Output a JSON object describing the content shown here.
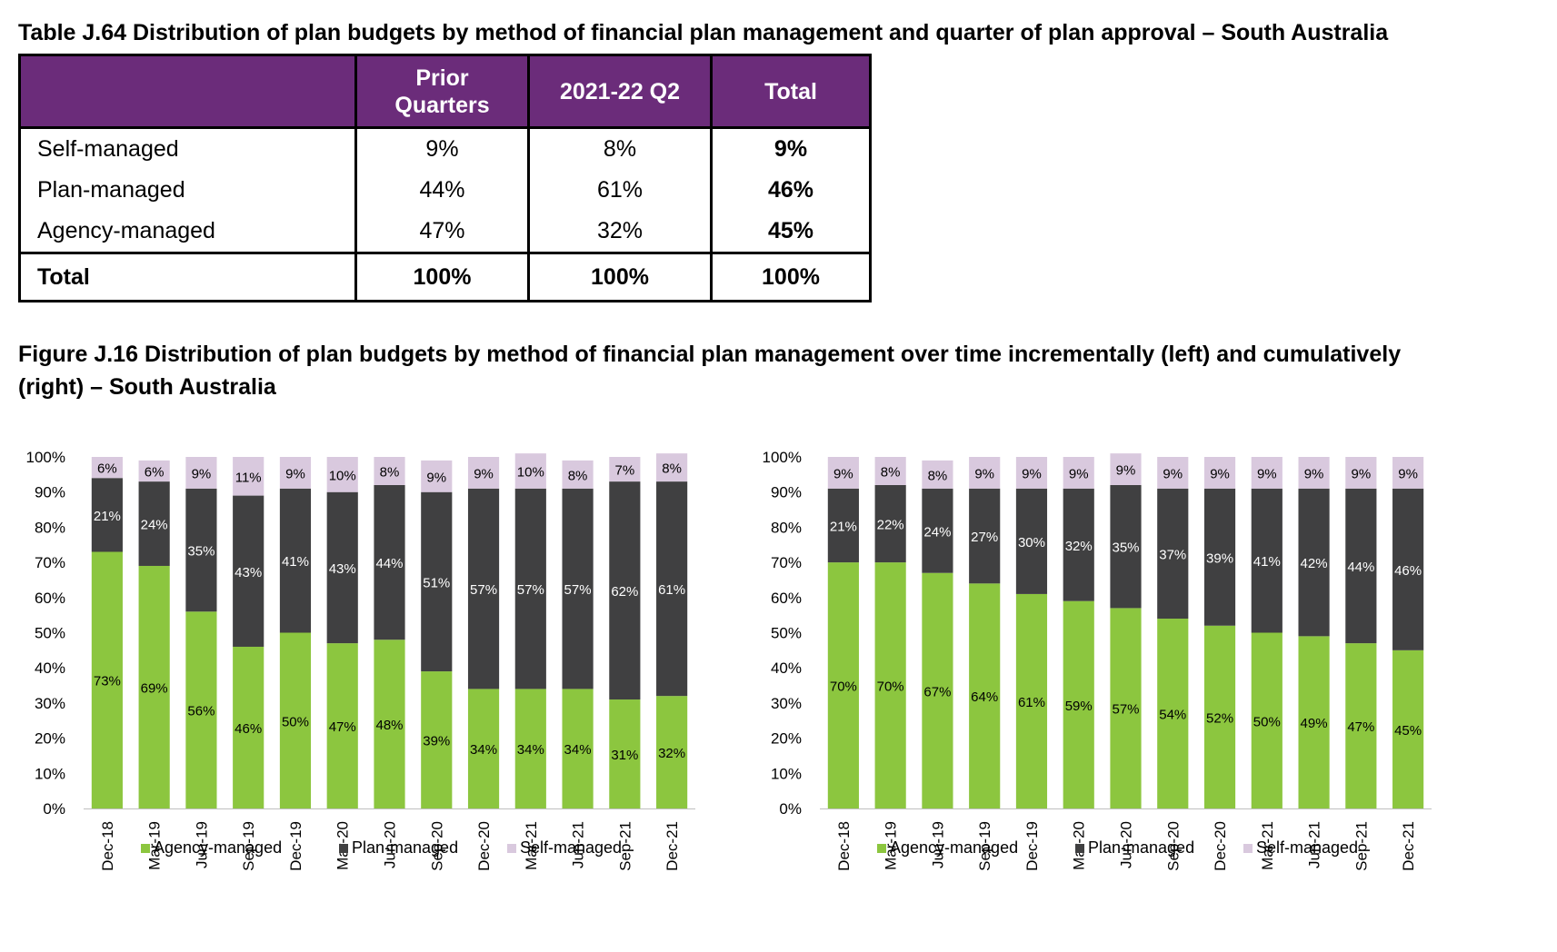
{
  "table": {
    "title": "Table J.64 Distribution of plan budgets by method of financial plan management and quarter of plan approval – South Australia",
    "headers": [
      "",
      "Prior Quarters",
      "2021-22 Q2",
      "Total"
    ],
    "rows": [
      {
        "label": "Self-managed",
        "prior": "9%",
        "q2": "8%",
        "total": "9%"
      },
      {
        "label": "Plan-managed",
        "prior": "44%",
        "q2": "61%",
        "total": "46%"
      },
      {
        "label": "Agency-managed",
        "prior": "47%",
        "q2": "32%",
        "total": "45%"
      }
    ],
    "total_row": {
      "label": "Total",
      "prior": "100%",
      "q2": "100%",
      "total": "100%"
    }
  },
  "figure": {
    "title": "Figure J.16 Distribution of plan budgets by method of financial plan management over time incrementally (left) and cumulatively (right) – South Australia"
  },
  "chart_data": [
    {
      "type": "bar",
      "stacked": true,
      "categories": [
        "Dec-18",
        "Mar-19",
        "Jun-19",
        "Sep-19",
        "Dec-19",
        "Mar-20",
        "Jun-20",
        "Sep-20",
        "Dec-20",
        "Mar-21",
        "Jun-21",
        "Sep-21",
        "Dec-21"
      ],
      "series": [
        {
          "name": "Agency-managed",
          "color": "#8cc63f",
          "values": [
            73,
            69,
            56,
            46,
            50,
            47,
            48,
            39,
            34,
            34,
            34,
            31,
            32
          ]
        },
        {
          "name": "Plan-managed",
          "color": "#404041",
          "values": [
            21,
            24,
            35,
            43,
            41,
            43,
            44,
            51,
            57,
            57,
            57,
            62,
            61
          ]
        },
        {
          "name": "Self-managed",
          "color": "#d9c9de",
          "values": [
            6,
            6,
            9,
            11,
            9,
            10,
            8,
            9,
            9,
            10,
            8,
            7,
            8
          ]
        }
      ],
      "ylim": [
        0,
        100
      ],
      "yticks": [
        "0%",
        "10%",
        "20%",
        "30%",
        "40%",
        "50%",
        "60%",
        "70%",
        "80%",
        "90%",
        "100%"
      ],
      "legend": "bottom"
    },
    {
      "type": "bar",
      "stacked": true,
      "categories": [
        "Dec-18",
        "Mar-19",
        "Jun-19",
        "Sep-19",
        "Dec-19",
        "Mar-20",
        "Jun-20",
        "Sep-20",
        "Dec-20",
        "Mar-21",
        "Jun-21",
        "Sep-21",
        "Dec-21"
      ],
      "series": [
        {
          "name": "Agency-managed",
          "color": "#8cc63f",
          "values": [
            70,
            70,
            67,
            64,
            61,
            59,
            57,
            54,
            52,
            50,
            49,
            47,
            45
          ]
        },
        {
          "name": "Plan-managed",
          "color": "#404041",
          "values": [
            21,
            22,
            24,
            27,
            30,
            32,
            35,
            37,
            39,
            41,
            42,
            44,
            46
          ]
        },
        {
          "name": "Self-managed",
          "color": "#d9c9de",
          "values": [
            9,
            8,
            8,
            9,
            9,
            9,
            9,
            9,
            9,
            9,
            9,
            9,
            9
          ]
        }
      ],
      "ylim": [
        0,
        100
      ],
      "yticks": [
        "0%",
        "10%",
        "20%",
        "30%",
        "40%",
        "50%",
        "60%",
        "70%",
        "80%",
        "90%",
        "100%"
      ],
      "legend": "bottom"
    }
  ]
}
